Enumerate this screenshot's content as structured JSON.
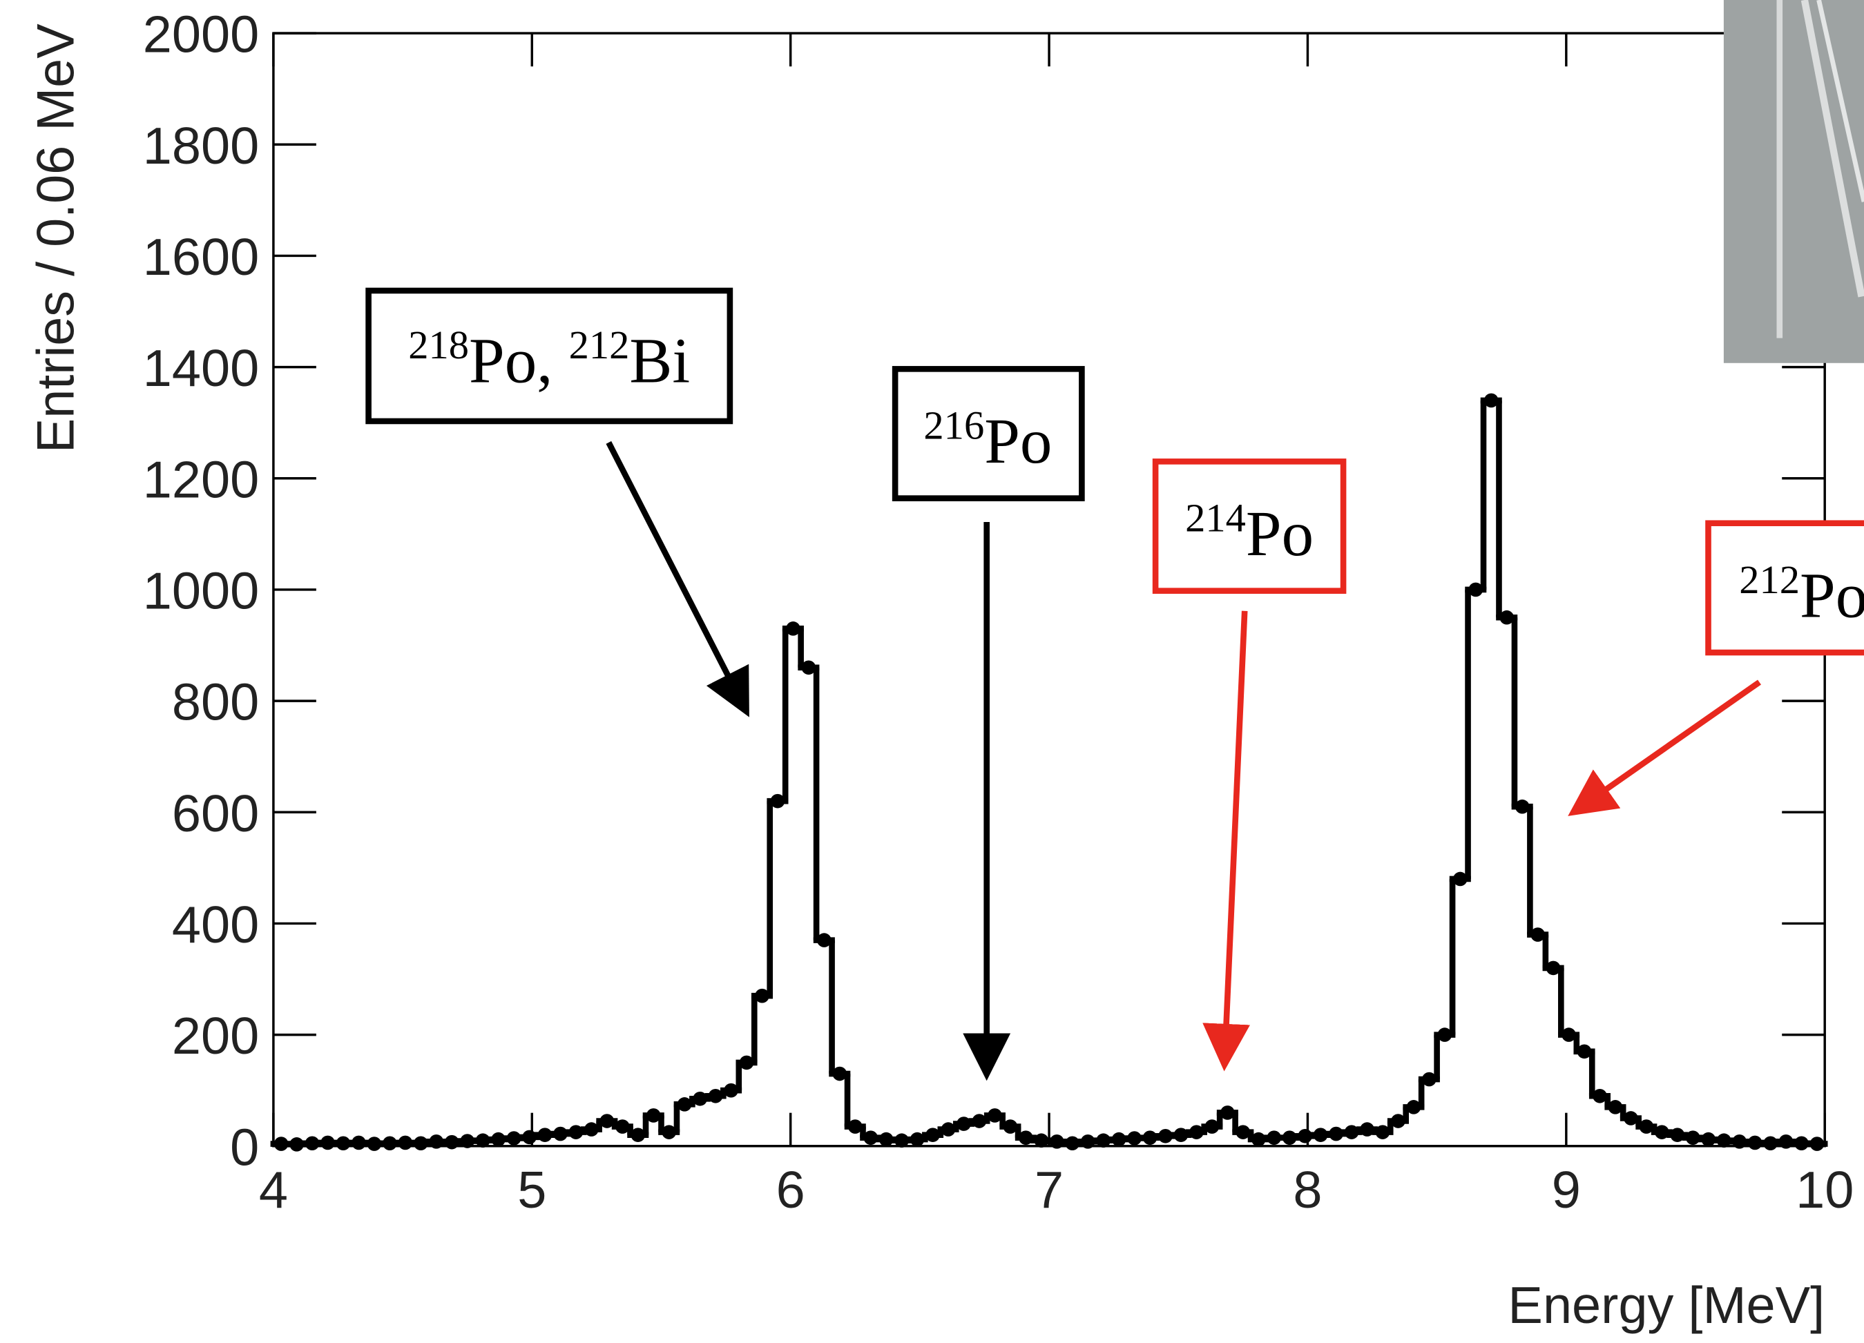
{
  "chart_data": {
    "type": "histogram",
    "xlabel": "Energy [MeV]",
    "ylabel": "Entries / 0.06 MeV",
    "color": "#000000",
    "xlim": [
      4,
      10
    ],
    "ylim": [
      0,
      2000
    ],
    "xticks": [
      4,
      5,
      6,
      7,
      8,
      9,
      10
    ],
    "yticks": [
      0,
      200,
      400,
      600,
      800,
      1000,
      1200,
      1400,
      1600,
      1800,
      2000
    ],
    "bins": [
      4,
      4.06,
      4.12,
      4.18,
      4.24,
      4.3,
      4.36,
      4.42,
      4.48,
      4.54,
      4.6,
      4.66,
      4.72,
      4.78,
      4.84,
      4.9,
      4.96,
      5.02,
      5.08,
      5.14,
      5.2,
      5.26,
      5.32,
      5.38,
      5.44,
      5.5,
      5.56,
      5.62,
      5.68,
      5.74,
      5.8,
      5.86,
      5.92,
      5.98,
      6.04,
      6.1,
      6.16,
      6.22,
      6.28,
      6.34,
      6.4,
      6.46,
      6.52,
      6.58,
      6.64,
      6.7,
      6.76,
      6.82,
      6.88,
      6.94,
      7,
      7.06,
      7.12,
      7.18,
      7.24,
      7.3,
      7.36,
      7.42,
      7.48,
      7.54,
      7.6,
      7.66,
      7.72,
      7.78,
      7.84,
      7.9,
      7.96,
      8.02,
      8.08,
      8.14,
      8.2,
      8.26,
      8.32,
      8.38,
      8.44,
      8.5,
      8.56,
      8.62,
      8.68,
      8.74,
      8.8,
      8.86,
      8.92,
      8.98,
      9.04,
      9.1,
      9.16,
      9.22,
      9.28,
      9.34,
      9.4,
      9.46,
      9.52,
      9.58,
      9.64,
      9.7,
      9.76,
      9.82,
      9.88,
      9.94,
      10
    ],
    "values": [
      4,
      3,
      5,
      6,
      5,
      6,
      4,
      5,
      6,
      5,
      8,
      7,
      9,
      10,
      12,
      14,
      16,
      20,
      22,
      25,
      30,
      45,
      35,
      20,
      55,
      25,
      75,
      85,
      90,
      100,
      150,
      270,
      620,
      930,
      860,
      370,
      130,
      35,
      15,
      12,
      10,
      12,
      20,
      30,
      40,
      45,
      55,
      35,
      15,
      10,
      8,
      5,
      8,
      10,
      12,
      14,
      15,
      18,
      20,
      25,
      35,
      60,
      25,
      12,
      15,
      15,
      18,
      20,
      22,
      25,
      30,
      25,
      45,
      70,
      120,
      200,
      480,
      1000,
      1340,
      950,
      610,
      380,
      320,
      200,
      170,
      90,
      70,
      50,
      35,
      25,
      20,
      15,
      12,
      10,
      8,
      6,
      5,
      8,
      5,
      4
    ],
    "annotations": [
      {
        "color": "#000000",
        "parts": [
          {
            "sup": "218"
          },
          {
            "text": "Po, "
          },
          {
            "sup": "212"
          },
          {
            "text": "Bi"
          }
        ]
      },
      {
        "color": "#000000",
        "parts": [
          {
            "sup": "216"
          },
          {
            "text": "Po"
          }
        ]
      },
      {
        "color": "#e8281e",
        "parts": [
          {
            "sup": "214"
          },
          {
            "text": "Po"
          }
        ]
      },
      {
        "color": "#e8281e",
        "parts": [
          {
            "sup": "212"
          },
          {
            "text": "Po"
          }
        ]
      }
    ]
  }
}
